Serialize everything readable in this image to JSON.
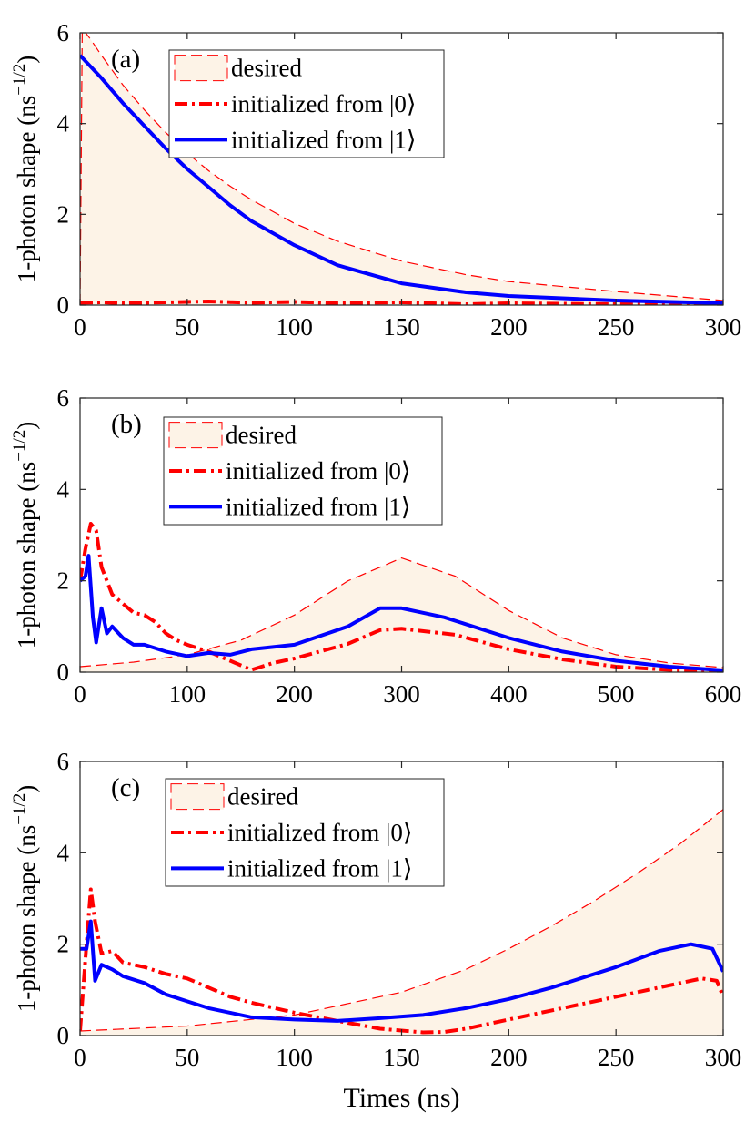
{
  "colors": {
    "desired_fill": "#fdf3e7",
    "desired_line": "#ff0000",
    "init0": "#ff0000",
    "init1": "#0000ff"
  },
  "x_label": "Times (ns)",
  "chart_data": [
    {
      "type": "line",
      "panel_label": "(a)",
      "ylabel": "1-photon shape (ns⁻¹ᐟ²)",
      "ylabel_base": "1-photon shape (ns",
      "ylabel_exp": "−1/2",
      "ylabel_close": ")",
      "xlim": [
        0,
        300
      ],
      "ylim": [
        0,
        6
      ],
      "xticks": [
        0,
        50,
        100,
        150,
        200,
        250,
        300
      ],
      "xtick_labels": [
        "0",
        "50",
        "100",
        "150",
        "200",
        "250",
        "300"
      ],
      "yticks": [
        0,
        2,
        4,
        6
      ],
      "ytick_labels": [
        "0",
        "2",
        "4",
        "6"
      ],
      "legend": {
        "placement": "top-center",
        "entries": [
          "desired",
          "initialized from |0⟩",
          "initialized from |1⟩"
        ]
      },
      "series": [
        {
          "name": "desired",
          "style": "dashed-filled",
          "x": [
            0,
            1,
            5,
            10,
            20,
            30,
            40,
            50,
            60,
            70,
            80,
            100,
            120,
            150,
            180,
            200,
            250,
            300
          ],
          "y": [
            0,
            6.1,
            5.85,
            5.5,
            4.85,
            4.3,
            3.8,
            3.35,
            2.96,
            2.62,
            2.32,
            1.8,
            1.41,
            0.97,
            0.67,
            0.52,
            0.3,
            0.1
          ]
        },
        {
          "name": "initialized from |0⟩",
          "style": "dash-dot",
          "x": [
            0,
            10,
            20,
            40,
            60,
            80,
            100,
            120,
            150,
            180,
            200,
            250,
            300
          ],
          "y": [
            0.05,
            0.06,
            0.04,
            0.06,
            0.08,
            0.05,
            0.07,
            0.04,
            0.06,
            0.02,
            0.04,
            0.02,
            0.03
          ]
        },
        {
          "name": "initialized from |1⟩",
          "style": "solid",
          "x": [
            0,
            10,
            20,
            30,
            40,
            50,
            60,
            70,
            80,
            100,
            120,
            150,
            180,
            200,
            250,
            300
          ],
          "y": [
            5.5,
            5.0,
            4.45,
            3.95,
            3.45,
            3.0,
            2.6,
            2.2,
            1.85,
            1.32,
            0.88,
            0.48,
            0.28,
            0.2,
            0.1,
            0.04
          ]
        }
      ]
    },
    {
      "type": "line",
      "panel_label": "(b)",
      "ylabel_base": "1-photon shape (ns",
      "ylabel_exp": "−1/2",
      "ylabel_close": ")",
      "xlim": [
        0,
        600
      ],
      "ylim": [
        0,
        6
      ],
      "xticks": [
        0,
        100,
        200,
        300,
        400,
        500,
        600
      ],
      "xtick_labels": [
        "0",
        "100",
        "200",
        "300",
        "400",
        "500",
        "600"
      ],
      "yticks": [
        0,
        2,
        4,
        6
      ],
      "ytick_labels": [
        "0",
        "2",
        "4",
        "6"
      ],
      "legend": {
        "placement": "top-center",
        "entries": [
          "desired",
          "initialized from |0⟩",
          "initialized from |1⟩"
        ]
      },
      "series": [
        {
          "name": "desired",
          "style": "dashed-filled",
          "x": [
            0,
            50,
            100,
            150,
            200,
            250,
            300,
            350,
            400,
            450,
            500,
            550,
            600
          ],
          "y": [
            0.12,
            0.22,
            0.38,
            0.7,
            1.25,
            2.0,
            2.5,
            2.1,
            1.35,
            0.75,
            0.38,
            0.2,
            0.1
          ]
        },
        {
          "name": "initialized from |0⟩",
          "style": "dash-dot",
          "x": [
            0,
            5,
            10,
            15,
            20,
            25,
            30,
            40,
            50,
            60,
            70,
            80,
            90,
            100,
            120,
            140,
            160,
            180,
            200,
            250,
            280,
            300,
            350,
            400,
            450,
            500,
            550,
            600
          ],
          "y": [
            2.0,
            2.7,
            3.25,
            3.1,
            2.3,
            2.0,
            1.7,
            1.5,
            1.3,
            1.25,
            1.1,
            0.85,
            0.7,
            0.6,
            0.45,
            0.25,
            0.05,
            0.2,
            0.3,
            0.62,
            0.92,
            0.95,
            0.82,
            0.5,
            0.28,
            0.12,
            0.05,
            0.04
          ]
        },
        {
          "name": "initialized from |1⟩",
          "style": "solid",
          "x": [
            0,
            5,
            8,
            12,
            15,
            20,
            25,
            30,
            40,
            50,
            60,
            80,
            100,
            120,
            140,
            160,
            180,
            200,
            250,
            280,
            300,
            340,
            400,
            450,
            500,
            550,
            600
          ],
          "y": [
            2.0,
            2.1,
            2.55,
            1.2,
            0.65,
            1.4,
            0.85,
            1.0,
            0.75,
            0.6,
            0.6,
            0.45,
            0.35,
            0.42,
            0.38,
            0.5,
            0.55,
            0.6,
            1.0,
            1.4,
            1.4,
            1.2,
            0.75,
            0.45,
            0.25,
            0.12,
            0.04
          ]
        }
      ]
    },
    {
      "type": "line",
      "panel_label": "(c)",
      "ylabel_base": "1-photon shape (ns",
      "ylabel_exp": "−1/2",
      "ylabel_close": ")",
      "xlabel": "Times (ns)",
      "xlim": [
        0,
        300
      ],
      "ylim": [
        0,
        6
      ],
      "xticks": [
        0,
        50,
        100,
        150,
        200,
        250,
        300
      ],
      "xtick_labels": [
        "0",
        "50",
        "100",
        "150",
        "200",
        "250",
        "300"
      ],
      "yticks": [
        0,
        2,
        4,
        6
      ],
      "ytick_labels": [
        "0",
        "2",
        "4",
        "6"
      ],
      "legend": {
        "placement": "top-center",
        "entries": [
          "desired",
          "initialized from |0⟩",
          "initialized from |1⟩"
        ]
      },
      "series": [
        {
          "name": "desired",
          "style": "dashed-filled",
          "x": [
            0,
            50,
            100,
            150,
            180,
            200,
            220,
            240,
            260,
            280,
            300
          ],
          "y": [
            0.1,
            0.21,
            0.45,
            0.95,
            1.45,
            1.9,
            2.4,
            2.95,
            3.55,
            4.2,
            4.95
          ]
        },
        {
          "name": "initialized from |0⟩",
          "style": "dash-dot",
          "x": [
            0,
            3,
            5,
            7,
            10,
            15,
            20,
            30,
            40,
            50,
            60,
            70,
            80,
            100,
            120,
            140,
            160,
            170,
            180,
            200,
            220,
            250,
            270,
            290,
            297,
            300
          ],
          "y": [
            0.1,
            2.0,
            3.2,
            2.5,
            1.8,
            1.85,
            1.6,
            1.5,
            1.35,
            1.25,
            1.05,
            0.85,
            0.72,
            0.5,
            0.32,
            0.15,
            0.07,
            0.08,
            0.15,
            0.35,
            0.55,
            0.85,
            1.05,
            1.25,
            1.2,
            0.85
          ]
        },
        {
          "name": "initialized from |1⟩",
          "style": "solid",
          "x": [
            0,
            3,
            5,
            7,
            10,
            15,
            20,
            30,
            40,
            50,
            60,
            70,
            80,
            100,
            120,
            140,
            160,
            180,
            200,
            220,
            250,
            270,
            285,
            295,
            300
          ],
          "y": [
            1.9,
            1.9,
            2.5,
            1.2,
            1.55,
            1.45,
            1.3,
            1.15,
            0.9,
            0.75,
            0.6,
            0.5,
            0.4,
            0.35,
            0.32,
            0.38,
            0.45,
            0.6,
            0.8,
            1.05,
            1.5,
            1.85,
            2.0,
            1.9,
            1.4
          ]
        }
      ]
    }
  ]
}
